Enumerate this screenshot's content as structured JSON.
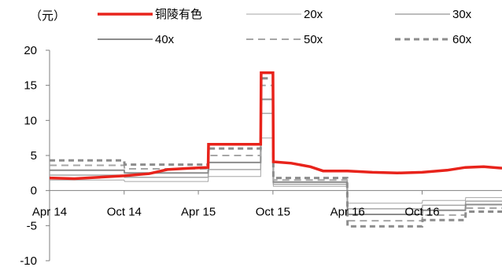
{
  "chart_data": {
    "type": "line",
    "unit_label": "（元）",
    "ylim": [
      -10,
      20
    ],
    "yticks": [
      20,
      15,
      10,
      5,
      0,
      -5,
      -10
    ],
    "x_range": [
      "2014-04-01",
      "2017-04-15"
    ],
    "xtick_labels": [
      {
        "label": "Apr 14",
        "date": "2014-04-01"
      },
      {
        "label": "Oct 14",
        "date": "2014-10-01"
      },
      {
        "label": "Apr 15",
        "date": "2015-04-01"
      },
      {
        "label": "Oct 15",
        "date": "2015-10-01"
      },
      {
        "label": "Apr 16",
        "date": "2016-04-01"
      },
      {
        "label": "Oct 16",
        "date": "2016-10-01"
      }
    ],
    "grid": false,
    "legend_position": "top",
    "series": [
      {
        "name": "铜陵有色",
        "color": "#e8231b",
        "style": "solid",
        "width": 3.5,
        "points": [
          [
            "2014-04-01",
            1.8
          ],
          [
            "2014-06-01",
            1.7
          ],
          [
            "2014-08-01",
            1.9
          ],
          [
            "2014-10-01",
            2.1
          ],
          [
            "2014-12-01",
            2.4
          ],
          [
            "2015-01-15",
            3.0
          ],
          [
            "2015-03-15",
            3.2
          ],
          [
            "2015-04-25",
            3.3
          ],
          [
            "2015-04-26",
            6.6
          ],
          [
            "2015-09-01",
            6.6
          ],
          [
            "2015-09-02",
            16.8
          ],
          [
            "2015-10-01",
            16.8
          ],
          [
            "2015-10-02",
            4.1
          ],
          [
            "2015-11-15",
            3.9
          ],
          [
            "2016-01-01",
            3.4
          ],
          [
            "2016-02-01",
            2.8
          ],
          [
            "2016-04-01",
            2.8
          ],
          [
            "2016-06-01",
            2.6
          ],
          [
            "2016-08-01",
            2.5
          ],
          [
            "2016-10-01",
            2.6
          ],
          [
            "2016-12-01",
            2.9
          ],
          [
            "2017-01-15",
            3.3
          ],
          [
            "2017-03-01",
            3.4
          ],
          [
            "2017-04-15",
            3.2
          ]
        ]
      },
      {
        "name": "20x",
        "color": "#a6a6a6",
        "style": "solid",
        "width": 1,
        "points": [
          [
            "2014-04-01",
            1.5
          ],
          [
            "2014-10-01",
            1.5
          ],
          [
            "2014-10-02",
            1.3
          ],
          [
            "2015-04-25",
            1.3
          ],
          [
            "2015-04-26",
            2.0
          ],
          [
            "2015-09-01",
            2.0
          ],
          [
            "2015-09-02",
            7.5
          ],
          [
            "2015-10-01",
            7.5
          ],
          [
            "2015-10-02",
            0.6
          ],
          [
            "2016-03-31",
            0.6
          ],
          [
            "2016-04-01",
            -1.8
          ],
          [
            "2016-10-01",
            -1.8
          ],
          [
            "2016-10-02",
            -1.4
          ],
          [
            "2017-01-15",
            -1.4
          ],
          [
            "2017-01-16",
            -1.0
          ],
          [
            "2017-04-15",
            -1.0
          ]
        ]
      },
      {
        "name": "30x",
        "color": "#a6a6a6",
        "style": "solid",
        "width": 1.5,
        "points": [
          [
            "2014-04-01",
            2.2
          ],
          [
            "2014-10-01",
            2.2
          ],
          [
            "2014-10-02",
            1.9
          ],
          [
            "2015-04-25",
            1.9
          ],
          [
            "2015-04-26",
            3.0
          ],
          [
            "2015-09-01",
            3.0
          ],
          [
            "2015-09-02",
            11.0
          ],
          [
            "2015-10-01",
            11.0
          ],
          [
            "2015-10-02",
            0.9
          ],
          [
            "2016-03-31",
            0.9
          ],
          [
            "2016-04-01",
            -2.6
          ],
          [
            "2016-10-01",
            -2.6
          ],
          [
            "2016-10-02",
            -2.1
          ],
          [
            "2017-01-15",
            -2.1
          ],
          [
            "2017-01-16",
            -1.5
          ],
          [
            "2017-04-15",
            -1.5
          ]
        ]
      },
      {
        "name": "40x",
        "color": "#8c8c8c",
        "style": "solid",
        "width": 2,
        "points": [
          [
            "2014-04-01",
            2.9
          ],
          [
            "2014-10-01",
            2.9
          ],
          [
            "2014-10-02",
            2.5
          ],
          [
            "2015-04-25",
            2.5
          ],
          [
            "2015-04-26",
            4.0
          ],
          [
            "2015-09-01",
            4.0
          ],
          [
            "2015-09-02",
            13.0
          ],
          [
            "2015-10-01",
            13.0
          ],
          [
            "2015-10-02",
            1.2
          ],
          [
            "2016-03-31",
            1.2
          ],
          [
            "2016-04-01",
            -3.4
          ],
          [
            "2016-10-01",
            -3.4
          ],
          [
            "2016-10-02",
            -2.8
          ],
          [
            "2017-01-15",
            -2.8
          ],
          [
            "2017-01-16",
            -2.0
          ],
          [
            "2017-04-15",
            -2.0
          ]
        ]
      },
      {
        "name": "50x",
        "color": "#a6a6a6",
        "style": "dashed",
        "width": 2,
        "points": [
          [
            "2014-04-01",
            3.6
          ],
          [
            "2014-10-01",
            3.6
          ],
          [
            "2014-10-02",
            3.1
          ],
          [
            "2015-04-25",
            3.1
          ],
          [
            "2015-04-26",
            5.0
          ],
          [
            "2015-09-01",
            5.0
          ],
          [
            "2015-09-02",
            15.0
          ],
          [
            "2015-10-01",
            15.0
          ],
          [
            "2015-10-02",
            1.5
          ],
          [
            "2016-03-31",
            1.5
          ],
          [
            "2016-04-01",
            -4.3
          ],
          [
            "2016-10-01",
            -4.3
          ],
          [
            "2016-10-02",
            -3.5
          ],
          [
            "2017-01-15",
            -3.5
          ],
          [
            "2017-01-16",
            -2.5
          ],
          [
            "2017-04-15",
            -2.5
          ]
        ]
      },
      {
        "name": "60x",
        "color": "#8c8c8c",
        "style": "dashed",
        "width": 3,
        "points": [
          [
            "2014-04-01",
            4.3
          ],
          [
            "2014-10-01",
            4.3
          ],
          [
            "2014-10-02",
            3.7
          ],
          [
            "2015-04-25",
            3.7
          ],
          [
            "2015-04-26",
            6.0
          ],
          [
            "2015-09-01",
            6.0
          ],
          [
            "2015-09-02",
            16.0
          ],
          [
            "2015-10-01",
            16.0
          ],
          [
            "2015-10-02",
            1.8
          ],
          [
            "2016-03-31",
            1.8
          ],
          [
            "2016-04-01",
            -5.1
          ],
          [
            "2016-10-01",
            -5.1
          ],
          [
            "2016-10-02",
            -4.2
          ],
          [
            "2017-01-15",
            -4.2
          ],
          [
            "2017-01-16",
            -3.0
          ],
          [
            "2017-04-15",
            -3.0
          ]
        ]
      }
    ]
  }
}
